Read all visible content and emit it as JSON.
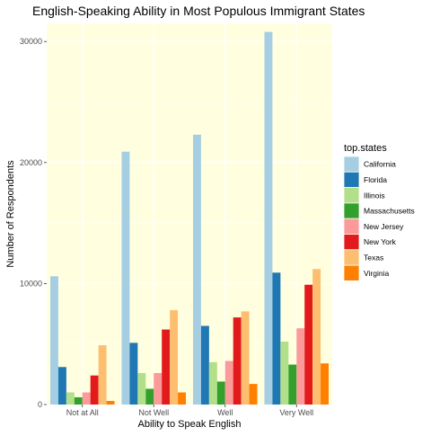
{
  "chart_data": {
    "type": "bar",
    "title": "English-Speaking Ability in Most Populous Immigrant States",
    "xlabel": "Ability to Speak English",
    "ylabel": "Number of Respondents",
    "categories": [
      "Not at All",
      "Not Well",
      "Well",
      "Very Well"
    ],
    "ylim": [
      0,
      31500
    ],
    "yticks": [
      0,
      10000,
      20000,
      30000
    ],
    "ytick_labels": [
      "0",
      "10000",
      "20000",
      "30000"
    ],
    "grid": true,
    "panel_background": "#ffffe0",
    "legend": {
      "title": "top.states",
      "position": "right"
    },
    "series": [
      {
        "name": "California",
        "color": "#a6cee3",
        "values": [
          10600,
          20900,
          22300,
          30800
        ]
      },
      {
        "name": "Florida",
        "color": "#1f78b4",
        "values": [
          3100,
          5100,
          6500,
          10900
        ]
      },
      {
        "name": "Illinois",
        "color": "#b2df8a",
        "values": [
          1000,
          2600,
          3500,
          5200
        ]
      },
      {
        "name": "Massachusetts",
        "color": "#33a02c",
        "values": [
          600,
          1300,
          1900,
          3300
        ]
      },
      {
        "name": "New Jersey",
        "color": "#fb9a99",
        "values": [
          1000,
          2600,
          3600,
          6300
        ]
      },
      {
        "name": "New York",
        "color": "#e31a1c",
        "values": [
          2400,
          6200,
          7200,
          9900
        ]
      },
      {
        "name": "Texas",
        "color": "#fdbf6f",
        "values": [
          4900,
          7800,
          7700,
          11200
        ]
      },
      {
        "name": "Virginia",
        "color": "#ff7f00",
        "values": [
          300,
          1000,
          1700,
          3400
        ]
      }
    ]
  }
}
